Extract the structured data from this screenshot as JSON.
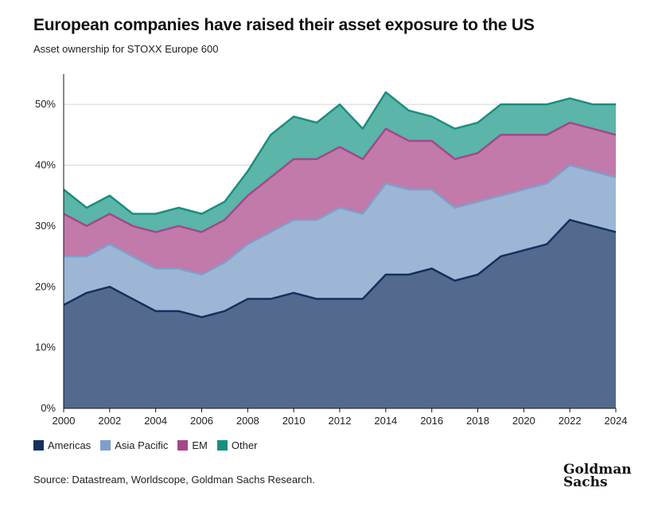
{
  "title": "European companies have raised their asset exposure to the US",
  "subtitle": "Asset ownership for STOXX Europe 600",
  "source": "Source: Datastream, Worldscope, Goldman Sachs Research.",
  "logo": {
    "line1": "Goldman",
    "line2": "Sachs"
  },
  "chart_data": {
    "type": "area",
    "stacked": true,
    "x": [
      2000,
      2001,
      2002,
      2003,
      2004,
      2005,
      2006,
      2007,
      2008,
      2009,
      2010,
      2011,
      2012,
      2013,
      2014,
      2015,
      2016,
      2017,
      2018,
      2019,
      2020,
      2021,
      2022,
      2023,
      2024
    ],
    "x_ticks": [
      "2000",
      "2002",
      "2004",
      "2006",
      "2008",
      "2010",
      "2012",
      "2014",
      "2016",
      "2018",
      "2020",
      "2022",
      "2024"
    ],
    "y_ticks": [
      "0%",
      "10%",
      "20%",
      "30%",
      "40%",
      "50%"
    ],
    "ylim": [
      0,
      55
    ],
    "grid": true,
    "legend_position": "bottom-left",
    "series": [
      {
        "name": "Americas",
        "fill": "#536A8E",
        "line": "#14305F",
        "values": [
          17,
          19,
          20,
          18,
          16,
          16,
          15,
          16,
          18,
          18,
          19,
          18,
          18,
          18,
          22,
          22,
          23,
          21,
          22,
          25,
          26,
          27,
          31,
          30,
          29
        ]
      },
      {
        "name": "Asia Pacific",
        "fill": "#9DB6D5",
        "line": "#7E9FCB",
        "values": [
          8,
          6,
          7,
          7,
          7,
          7,
          7,
          8,
          9,
          11,
          12,
          13,
          15,
          14,
          15,
          14,
          13,
          12,
          12,
          10,
          10,
          10,
          9,
          9,
          9
        ]
      },
      {
        "name": "EM",
        "fill": "#C17AAA",
        "line": "#A4488A",
        "values": [
          7,
          5,
          5,
          5,
          6,
          7,
          7,
          7,
          8,
          9,
          10,
          10,
          10,
          9,
          9,
          8,
          8,
          8,
          8,
          10,
          9,
          8,
          7,
          7,
          7
        ]
      },
      {
        "name": "Other",
        "fill": "#5BB5A8",
        "line": "#1A8E80",
        "values": [
          4,
          3,
          3,
          2,
          3,
          3,
          3,
          3,
          4,
          7,
          7,
          6,
          7,
          5,
          6,
          5,
          4,
          5,
          5,
          5,
          5,
          5,
          4,
          4,
          5
        ]
      }
    ]
  }
}
